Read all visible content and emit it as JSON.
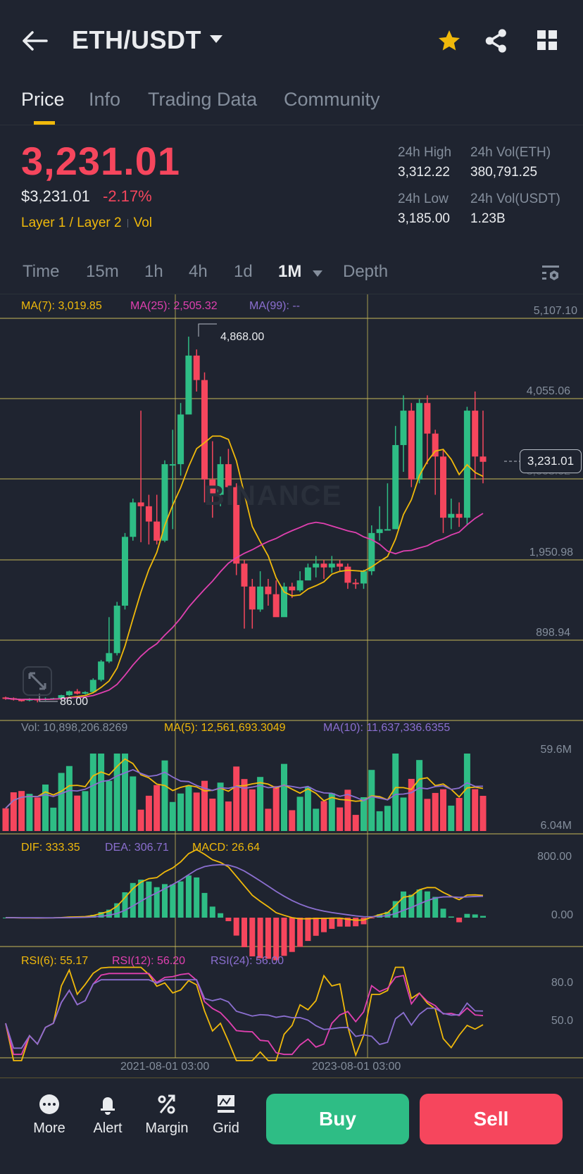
{
  "header": {
    "pair": "ETH/USDT",
    "icons": [
      "back-arrow-icon",
      "caret-down-icon",
      "star-icon",
      "share-icon",
      "grid-apps-icon"
    ]
  },
  "tabs": [
    {
      "label": "Price",
      "active": true
    },
    {
      "label": "Info",
      "active": false
    },
    {
      "label": "Trading Data",
      "active": false
    },
    {
      "label": "Community",
      "active": false
    }
  ],
  "price": {
    "last": "3,231.01",
    "usd": "$3,231.01",
    "change": "-2.17%",
    "tag1": "Layer 1 / Layer 2",
    "tag2": "Vol"
  },
  "stats": {
    "high_label": "24h High",
    "high": "3,312.22",
    "low_label": "24h Low",
    "low": "3,185.00",
    "vol_eth_label": "24h Vol(ETH)",
    "vol_eth": "380,791.25",
    "vol_usdt_label": "24h Vol(USDT)",
    "vol_usdt": "1.23B"
  },
  "intervals": {
    "items": [
      "Time",
      "15m",
      "1h",
      "4h",
      "1d",
      "1M",
      "Depth"
    ],
    "active": "1M"
  },
  "colors": {
    "up": "#2ebd85",
    "down": "#f6465d",
    "accent": "#f0b90b",
    "ma7": "#f0b90b",
    "ma25": "#e040b0",
    "ma99": "#8b6fd0",
    "bg": "#1f2430",
    "grid": "#c8b95a"
  },
  "main_chart": {
    "ma7_label": "MA(7): 3,019.85",
    "ma25_label": "MA(25): 2,505.32",
    "ma99_label": "MA(99): --",
    "axis": [
      "5,107.10",
      "4,055.06",
      "3,003.02",
      "1,950.98",
      "898.94"
    ],
    "high_marker": "4,868.00",
    "low_marker": "86.00",
    "current": "3,231.01",
    "watermark": "BINANCE"
  },
  "volume_chart": {
    "vol_label": "Vol: 10,898,206.8269",
    "ma5_label": "MA(5): 12,561,693.3049",
    "ma10_label": "MA(10): 11,637,336.6355",
    "axis": [
      "59.6M",
      "6.04M"
    ]
  },
  "macd_chart": {
    "dif_label": "DIF: 333.35",
    "dea_label": "DEA: 306.71",
    "macd_label": "MACD: 26.64",
    "axis": [
      "800.00",
      "0.00"
    ]
  },
  "rsi_chart": {
    "rsi6_label": "RSI(6): 55.17",
    "rsi12_label": "RSI(12): 56.20",
    "rsi24_label": "RSI(24): 56.00",
    "axis": [
      "80.0",
      "50.0"
    ]
  },
  "x_axis": [
    "2021-08-01 03:00",
    "2023-08-01 03:00"
  ],
  "bottom_bar": {
    "more": "More",
    "alert": "Alert",
    "margin": "Margin",
    "grid": "Grid",
    "buy": "Buy",
    "sell": "Sell"
  },
  "chart_data": {
    "type": "candlestick",
    "title": "ETH/USDT 1M",
    "ylim": [
      86,
      5107.1
    ],
    "y_ticks": [
      5107.1,
      4055.06,
      3003.02,
      1950.98,
      898.94
    ],
    "x_ticks": [
      "2021-08-01 03:00",
      "2023-08-01 03:00"
    ],
    "annotations": {
      "max": 4868.0,
      "min": 86.0,
      "last": 3231.01
    },
    "candles": [
      [
        150,
        140,
        160,
        120
      ],
      [
        140,
        120,
        150,
        110
      ],
      [
        120,
        110,
        130,
        95
      ],
      [
        110,
        130,
        140,
        100
      ],
      [
        130,
        120,
        135,
        86
      ],
      [
        120,
        135,
        150,
        110
      ],
      [
        135,
        140,
        145,
        125
      ],
      [
        140,
        180,
        185,
        130
      ],
      [
        180,
        230,
        240,
        170
      ],
      [
        230,
        200,
        260,
        190
      ],
      [
        200,
        220,
        230,
        190
      ],
      [
        220,
        380,
        400,
        210
      ],
      [
        380,
        620,
        640,
        360
      ],
      [
        620,
        730,
        1200,
        600
      ],
      [
        730,
        1350,
        1400,
        700
      ],
      [
        1350,
        2250,
        2300,
        1300
      ],
      [
        2250,
        2700,
        2750,
        2200
      ],
      [
        2700,
        2650,
        3900,
        2180
      ],
      [
        2650,
        2450,
        2800,
        2150
      ],
      [
        2450,
        2200,
        2800,
        2150
      ],
      [
        2200,
        3200,
        3250,
        2180
      ],
      [
        3200,
        3200,
        3650,
        2350
      ],
      [
        3200,
        3850,
        4000,
        3050
      ],
      [
        3850,
        4620,
        4868,
        4300
      ],
      [
        4620,
        4300,
        4700,
        4150
      ],
      [
        4300,
        3000,
        4400,
        2700
      ],
      [
        3000,
        2800,
        3500,
        2500
      ],
      [
        2800,
        3200,
        3300,
        2650
      ],
      [
        3200,
        2900,
        3400,
        2850
      ],
      [
        2900,
        1900,
        2950,
        1750
      ],
      [
        1900,
        1600,
        1950,
        1050
      ],
      [
        1600,
        1300,
        1700,
        1050
      ],
      [
        1300,
        1600,
        1800,
        1270
      ],
      [
        1600,
        1500,
        1700,
        1350
      ],
      [
        1500,
        1200,
        1680,
        1290
      ],
      [
        1200,
        1600,
        1650,
        1250
      ],
      [
        1600,
        1550,
        1650,
        1450
      ],
      [
        1550,
        1680,
        1800,
        1530
      ],
      [
        1680,
        1850,
        1900,
        1760
      ],
      [
        1850,
        1900,
        2000,
        1720
      ],
      [
        1900,
        1850,
        1950,
        1700
      ],
      [
        1850,
        1900,
        2000,
        1780
      ],
      [
        1900,
        1860,
        1950,
        1800
      ],
      [
        1860,
        1650,
        1900,
        1570
      ],
      [
        1650,
        1640,
        1700,
        1570
      ],
      [
        1640,
        1800,
        1820,
        1570
      ],
      [
        1800,
        2300,
        2400,
        1750
      ],
      [
        2300,
        2350,
        2650,
        2200
      ],
      [
        2350,
        2350,
        2950,
        2350
      ],
      [
        2350,
        3450,
        3700,
        3350
      ],
      [
        3450,
        3900,
        4100,
        3100
      ],
      [
        3900,
        3000,
        4000,
        2900
      ],
      [
        3000,
        4000,
        4050,
        2950
      ],
      [
        4000,
        3600,
        4100,
        3200
      ],
      [
        3600,
        3300,
        3650,
        2800
      ],
      [
        3300,
        2500,
        3400,
        2300
      ],
      [
        2500,
        2550,
        2750,
        2350
      ],
      [
        2550,
        2500,
        2700,
        2380
      ],
      [
        2500,
        3900,
        3950,
        2400
      ],
      [
        3900,
        3300,
        4150,
        3000
      ],
      [
        3300,
        3231,
        3900,
        2950
      ]
    ],
    "ma7_last": 3019.85,
    "ma25_last": 2505.32
  }
}
